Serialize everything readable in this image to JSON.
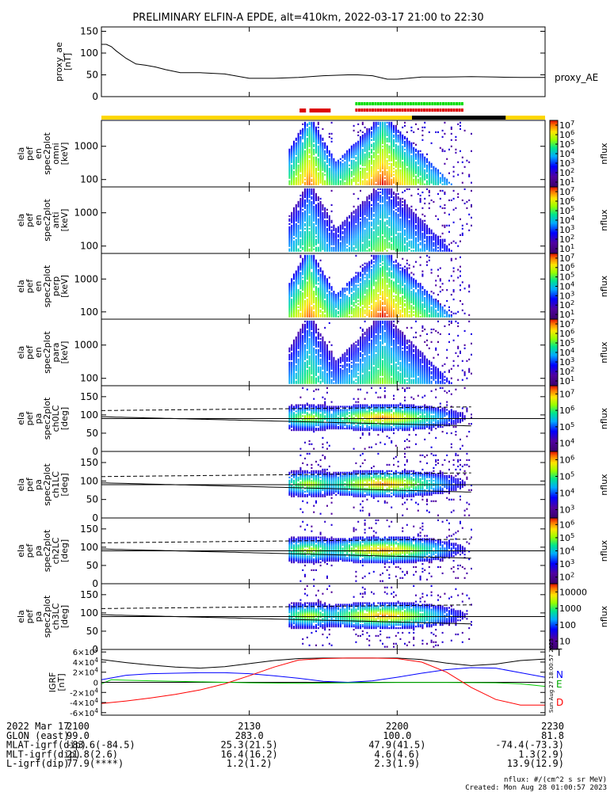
{
  "title": "PRELIMINARY ELFIN-A EPDE, alt=410km, 2022-03-17 21:00 to 22:30",
  "side_stamp": "Sun Aug 27 18:00:57 2023",
  "chart_data": {
    "type": "line",
    "x_ticks": [
      {
        "t": "21:00",
        "label": "2100"
      },
      {
        "t": "21:30",
        "label": "2130"
      },
      {
        "t": "22:00",
        "label": "2200"
      },
      {
        "t": "22:30",
        "label": "2230"
      }
    ],
    "x_range": [
      "21:00",
      "22:30"
    ],
    "panels": [
      {
        "id": "proxy_ae",
        "type": "line",
        "ylabel": [
          "proxy_ae",
          "[nT]"
        ],
        "ylim": [
          0,
          160
        ],
        "yticks": [
          0,
          50,
          100,
          150
        ],
        "series": [
          {
            "name": "proxy_AE",
            "x": [
              "21:00",
              "21:01",
              "21:02",
              "21:03",
              "21:05",
              "21:07",
              "21:09",
              "21:11",
              "21:13",
              "21:16",
              "21:20",
              "21:25",
              "21:30",
              "21:35",
              "21:40",
              "21:45",
              "21:50",
              "21:52",
              "21:55",
              "21:58",
              "22:00",
              "22:05",
              "22:10",
              "22:15",
              "22:20",
              "22:25",
              "22:30"
            ],
            "y": [
              120,
              120,
              115,
              105,
              88,
              75,
              72,
              68,
              62,
              55,
              55,
              52,
              42,
              42,
              44,
              48,
              50,
              50,
              48,
              40,
              40,
              45,
              45,
              46,
              45,
              44,
              44
            ]
          }
        ]
      },
      {
        "id": "ela_pef_en_omni",
        "type": "heatmap",
        "ylabel": [
          "ela",
          "pef",
          "en",
          "spec2plot",
          "omni",
          "[keV]"
        ],
        "yscale": "log",
        "ylim": [
          60,
          6000
        ],
        "yticks": [
          100,
          1000
        ],
        "colorbar": {
          "label": "nflux",
          "scale": "log",
          "ticks": [
            "10^1",
            "10^2",
            "10^3",
            "10^4",
            "10^5",
            "10^6",
            "10^7"
          ]
        }
      },
      {
        "id": "ela_pef_en_anti",
        "type": "heatmap",
        "ylabel": [
          "ela",
          "pef",
          "en",
          "spec2plot",
          "anti",
          "[keV]"
        ],
        "yscale": "log",
        "ylim": [
          60,
          6000
        ],
        "yticks": [
          100,
          1000
        ],
        "colorbar": {
          "label": "nflux",
          "scale": "log",
          "ticks": [
            "10^1",
            "10^2",
            "10^3",
            "10^4",
            "10^5",
            "10^6",
            "10^7"
          ]
        }
      },
      {
        "id": "ela_pef_en_perp",
        "type": "heatmap",
        "ylabel": [
          "ela",
          "pef",
          "en",
          "spec2plot",
          "perp",
          "[keV]"
        ],
        "yscale": "log",
        "ylim": [
          60,
          6000
        ],
        "yticks": [
          100,
          1000
        ],
        "colorbar": {
          "label": "nflux",
          "scale": "log",
          "ticks": [
            "10^1",
            "10^2",
            "10^3",
            "10^4",
            "10^5",
            "10^6",
            "10^7"
          ]
        }
      },
      {
        "id": "ela_pef_en_para",
        "type": "heatmap",
        "ylabel": [
          "ela",
          "pef",
          "en",
          "spec2plot",
          "para",
          "[keV]"
        ],
        "yscale": "log",
        "ylim": [
          60,
          6000
        ],
        "yticks": [
          100,
          1000
        ],
        "colorbar": {
          "label": "nflux",
          "scale": "log",
          "ticks": [
            "10^1",
            "10^2",
            "10^3",
            "10^4",
            "10^5",
            "10^6",
            "10^7"
          ]
        }
      },
      {
        "id": "ela_pef_pa_ch0LC",
        "type": "heatmap",
        "ylabel": [
          "ela",
          "pef",
          "pa",
          "spec2plot",
          "ch0LC",
          "[deg]"
        ],
        "ylim": [
          0,
          180
        ],
        "yticks": [
          0,
          50,
          100,
          150
        ],
        "colorbar": {
          "label": "nflux",
          "scale": "log",
          "ticks": [
            "10^4",
            "10^5",
            "10^6",
            "10^7"
          ]
        }
      },
      {
        "id": "ela_pef_pa_ch1LC",
        "type": "heatmap",
        "ylabel": [
          "ela",
          "pef",
          "pa",
          "spec2plot",
          "ch1LC",
          "[deg]"
        ],
        "ylim": [
          0,
          180
        ],
        "yticks": [
          0,
          50,
          100,
          150
        ],
        "colorbar": {
          "label": "nflux",
          "scale": "log",
          "ticks": [
            "10^3",
            "10^4",
            "10^5",
            "10^6"
          ]
        }
      },
      {
        "id": "ela_pef_pa_ch2LC",
        "type": "heatmap",
        "ylabel": [
          "ela",
          "pef",
          "pa",
          "spec2plot",
          "ch2LC",
          "[deg]"
        ],
        "ylim": [
          0,
          180
        ],
        "yticks": [
          0,
          50,
          100,
          150
        ],
        "colorbar": {
          "label": "nflux",
          "scale": "log",
          "ticks": [
            "10^2",
            "10^3",
            "10^4",
            "10^5",
            "10^6"
          ]
        }
      },
      {
        "id": "ela_pef_pa_ch3LC",
        "type": "heatmap",
        "ylabel": [
          "ela",
          "pef",
          "pa",
          "spec2plot",
          "ch3LC",
          "[deg]"
        ],
        "ylim": [
          0,
          180
        ],
        "yticks": [
          0,
          50,
          100,
          150
        ],
        "colorbar": {
          "label": "nflux",
          "scale": "linear-log",
          "ticks": [
            "10",
            "100",
            "1000",
            "10000"
          ]
        }
      },
      {
        "id": "igrf",
        "type": "line",
        "ylabel": [
          "IGRF",
          "[nT]"
        ],
        "ylim": [
          -65000,
          65000
        ],
        "yticks": [
          "-6×10^4",
          "-4×10^4",
          "-2×10^4",
          "0",
          "2×10^4",
          "4×10^4",
          "6×10^4"
        ],
        "series": [
          {
            "name": "T",
            "color": "#000000",
            "x": [
              "21:00",
              "21:05",
              "21:10",
              "21:15",
              "21:20",
              "21:25",
              "21:30",
              "21:35",
              "21:40",
              "21:45",
              "21:50",
              "21:55",
              "22:00",
              "22:05",
              "22:10",
              "22:15",
              "22:20",
              "22:25",
              "22:30"
            ],
            "y": [
              45000,
              39000,
              34000,
              30000,
              28000,
              31000,
              37000,
              43000,
              47000,
              48000,
              48000,
              48000,
              48000,
              45000,
              38000,
              33000,
              36000,
              43000,
              46000
            ]
          },
          {
            "name": "N",
            "color": "#0000ff",
            "x": [
              "21:00",
              "21:05",
              "21:10",
              "21:15",
              "21:20",
              "21:25",
              "21:30",
              "21:35",
              "21:40",
              "21:45",
              "21:50",
              "21:55",
              "22:00",
              "22:05",
              "22:10",
              "22:15",
              "22:20",
              "22:25",
              "22:30"
            ],
            "y": [
              5000,
              14000,
              17000,
              18000,
              19000,
              19000,
              17000,
              13000,
              8000,
              2000,
              0,
              3000,
              10000,
              18000,
              25000,
              29000,
              28000,
              19000,
              10000
            ]
          },
          {
            "name": "E",
            "color": "#00cc00",
            "x": [
              "21:00",
              "21:02",
              "21:05",
              "21:10",
              "21:20",
              "21:30",
              "21:40",
              "21:50",
              "22:00",
              "22:10",
              "22:20",
              "22:25",
              "22:30"
            ],
            "y": [
              -3000,
              5000,
              4000,
              3000,
              1000,
              -1000,
              -2000,
              -1000,
              -500,
              -500,
              -1000,
              -3000,
              -8000
            ]
          },
          {
            "name": "D",
            "color": "#ff0000",
            "x": [
              "21:00",
              "21:05",
              "21:10",
              "21:15",
              "21:20",
              "21:25",
              "21:30",
              "21:35",
              "21:40",
              "21:45",
              "21:50",
              "21:55",
              "22:00",
              "22:05",
              "22:10",
              "22:15",
              "22:20",
              "22:25",
              "22:30"
            ],
            "y": [
              -42000,
              -37000,
              -31000,
              -24000,
              -15000,
              -3000,
              13000,
              30000,
              44000,
              47000,
              48000,
              48000,
              47000,
              40000,
              20000,
              -10000,
              -34000,
              -45000,
              -45000
            ]
          }
        ]
      }
    ]
  },
  "footer": {
    "rows": [
      {
        "label": "2022 Mar 17",
        "values": [
          "2100",
          "2130",
          "2200",
          "2230"
        ]
      },
      {
        "label": "GLON (east)",
        "values": [
          "99.0",
          "283.0",
          "100.0",
          "81.8"
        ]
      },
      {
        "label": "MLAT-igrf(dip)",
        "values": [
          "-83.6(-84.5)",
          "25.3(21.5)",
          "47.9(41.5)",
          "-74.4(-73.3)"
        ]
      },
      {
        "label": "MLT-igrf(dip)",
        "values": [
          "21.8(2.6)",
          "16.4(16.2)",
          "4.6(4.6)",
          "1.3(2.9)"
        ]
      },
      {
        "label": "L-igrf(dip)",
        "values": [
          "77.9(****)",
          "1.2(1.2)",
          "2.3(1.9)",
          "13.9(12.9)"
        ]
      }
    ],
    "units_note": "nflux: #/(cm^2 s sr MeV)",
    "created": "Created: Mon Aug 28 01:00:57 2023"
  }
}
